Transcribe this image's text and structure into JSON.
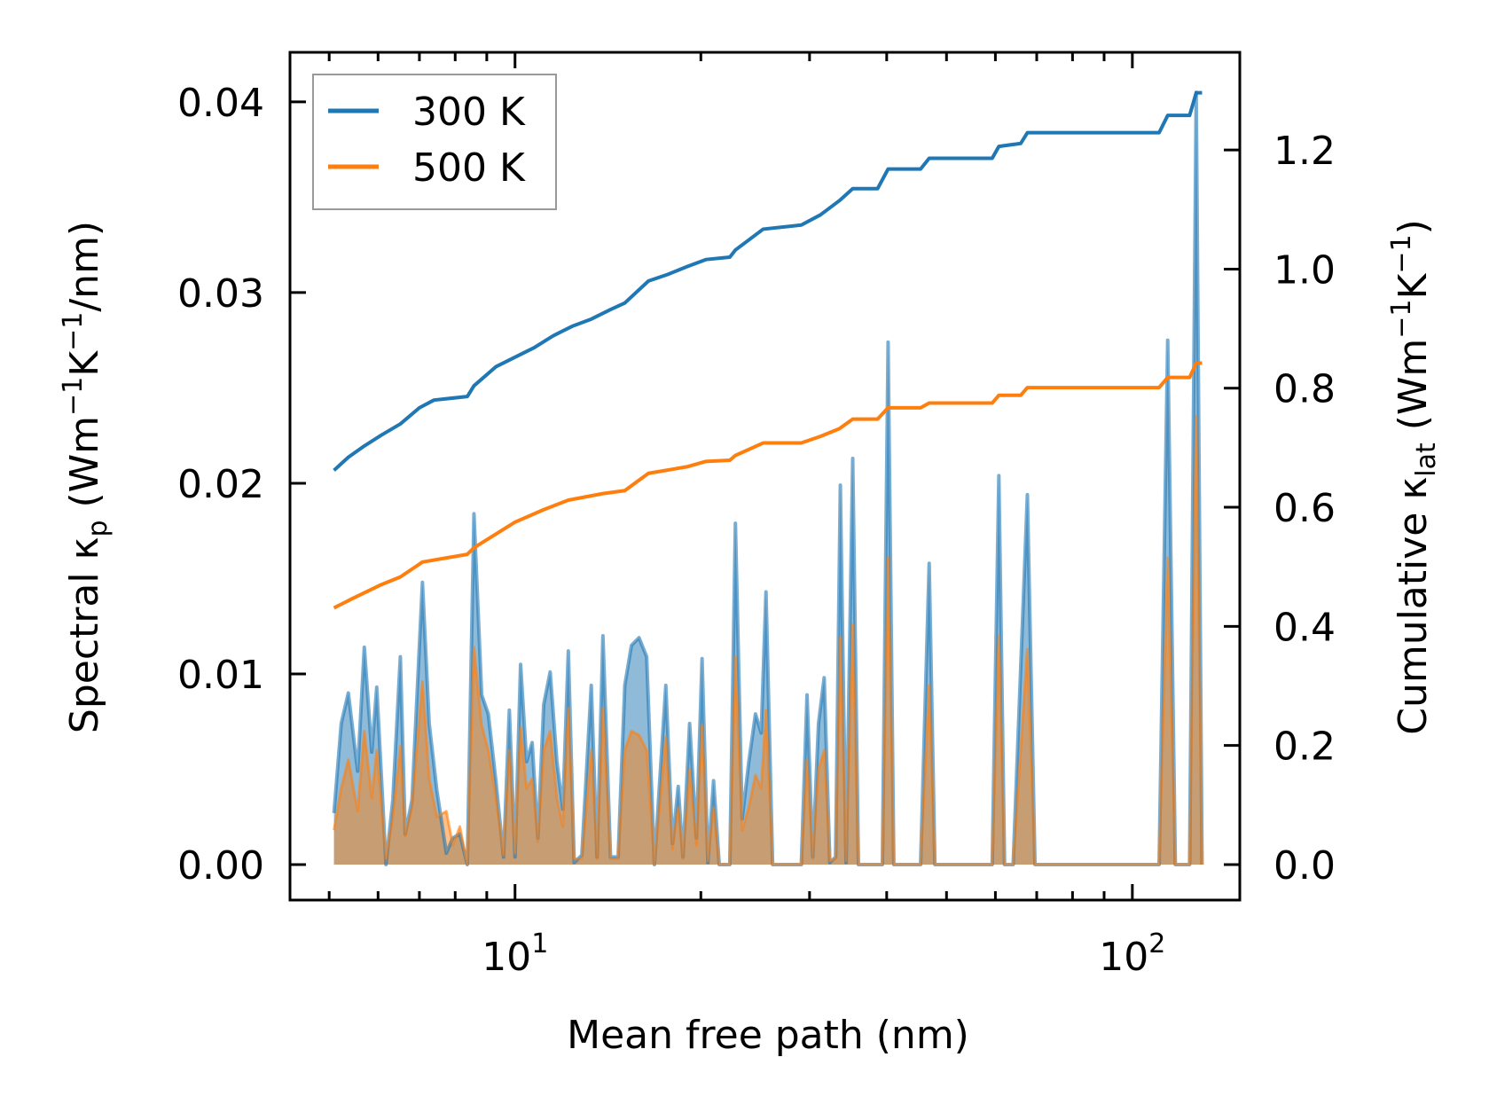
{
  "chart_data": {
    "type": "line",
    "xlabel": "Mean free path (nm)",
    "xscale": "log",
    "xlim": [
      4.32,
      149.3
    ],
    "ylim_left": [
      -0.00186,
      0.0426
    ],
    "ylim_right": [
      -0.0596,
      1.364
    ],
    "grid": false,
    "legend_position": "top-left",
    "ylabel_left": {
      "main": "Spectral κ",
      "sub": "p",
      "a": " (Wm",
      "sup1": "−1",
      "b": "K",
      "sup2": "−1",
      "c": "/nm)"
    },
    "ylabel_right": {
      "main": "Cumulative κ",
      "sub": "lat",
      "a": " (Wm",
      "sup1": "−1",
      "b": "K",
      "sup2": "−1",
      "c": ")"
    },
    "x_ticks": [
      {
        "value": 10,
        "base": "10",
        "exp": "1"
      },
      {
        "value": 100,
        "base": "10",
        "exp": "2"
      }
    ],
    "x_minor_ticks": [
      5,
      6,
      7,
      8,
      9,
      20,
      30,
      40,
      50,
      60,
      70,
      80,
      90
    ],
    "y_left_ticks": [
      {
        "value": 0,
        "label": "0.00"
      },
      {
        "value": 0.01,
        "label": "0.01"
      },
      {
        "value": 0.02,
        "label": "0.02"
      },
      {
        "value": 0.03,
        "label": "0.03"
      },
      {
        "value": 0.04,
        "label": "0.04"
      }
    ],
    "y_right_ticks": [
      {
        "value": 0,
        "label": "0.0"
      },
      {
        "value": 0.2,
        "label": "0.2"
      },
      {
        "value": 0.4,
        "label": "0.4"
      },
      {
        "value": 0.6,
        "label": "0.6"
      },
      {
        "value": 0.8,
        "label": "0.8"
      },
      {
        "value": 1.0,
        "label": "1.0"
      },
      {
        "value": 1.2,
        "label": "1.2"
      }
    ],
    "colors": {
      "300K": "#1f77b4",
      "500K": "#ff7f0e"
    },
    "legend": [
      {
        "label": "300 K",
        "color": "#1f77b4"
      },
      {
        "label": "500 K",
        "color": "#ff7f0e"
      }
    ],
    "spectral": {
      "x": [
        5.09,
        5.23,
        5.37,
        5.56,
        5.7,
        5.86,
        5.97,
        6.18,
        6.34,
        6.52,
        6.64,
        6.81,
        7.08,
        7.26,
        7.47,
        7.74,
        7.93,
        8.14,
        8.37,
        8.58,
        8.83,
        9.05,
        9.31,
        9.58,
        9.79,
        10.0,
        10.21,
        10.44,
        10.66,
        10.89,
        11.13,
        11.4,
        11.69,
        11.95,
        12.2,
        12.47,
        12.83,
        13.29,
        13.58,
        13.88,
        14.28,
        14.69,
        15.06,
        15.44,
        15.88,
        16.34,
        16.82,
        17.55,
        17.99,
        18.38,
        18.71,
        19.18,
        19.67,
        20.09,
        20.53,
        20.97,
        21.42,
        22.28,
        22.75,
        23.33,
        23.92,
        24.52,
        25.05,
        25.5,
        26.14,
        29.09,
        29.72,
        30.36,
        31.02,
        31.68,
        32.36,
        33.06,
        33.65,
        34.38,
        35.24,
        36.0,
        39.36,
        40.21,
        41.08,
        45.39,
        46.87,
        47.88,
        59.29,
        60.78,
        62.09,
        64.11,
        67.6,
        69.55,
        110.5,
        114.1,
        117.4,
        123.8,
        126.9,
        129.7
      ],
      "series": [
        {
          "name": "300 K",
          "values": [
            0.0027,
            0.0074,
            0.009,
            0.0049,
            0.0114,
            0.0059,
            0.0093,
            0,
            0.0034,
            0.0109,
            0.0016,
            0.0034,
            0.0148,
            0.0074,
            0.0039,
            0.0006,
            0.0014,
            0.0016,
            0,
            0.0184,
            0.0089,
            0.0079,
            0.0044,
            0.0004,
            0.0081,
            0.0004,
            0.0105,
            0.0054,
            0.0064,
            0.0014,
            0.0084,
            0.0101,
            0.0054,
            0.0029,
            0.0112,
            0.0001,
            0.0005,
            0.0094,
            0.0004,
            0.012,
            0.0004,
            0.0004,
            0.0094,
            0.0115,
            0.0119,
            0.0109,
            0,
            0.0094,
            0.0011,
            0.0041,
            0.0004,
            0.0074,
            0.0014,
            0.0108,
            0.0001,
            0.0044,
            0,
            0,
            0.0179,
            0.0024,
            0.0054,
            0.0079,
            0.0069,
            0.0143,
            0,
            0,
            0.0089,
            0.0004,
            0.0074,
            0.0098,
            0.0001,
            0.0004,
            0.0199,
            0.0001,
            0.0213,
            0,
            0,
            0.0274,
            0,
            0,
            0.0158,
            0,
            0,
            0.0204,
            0,
            0,
            0.0194,
            0,
            0,
            0.0275,
            0,
            0,
            0.0405,
            0
          ]
        },
        {
          "name": "500 K",
          "values": [
            0.0018,
            0.004,
            0.0055,
            0.0028,
            0.007,
            0.0035,
            0.006,
            0.0003,
            0.0025,
            0.0062,
            0.0015,
            0.003,
            0.0096,
            0.0045,
            0.0025,
            0.0028,
            0.001,
            0.002,
            0,
            0.0114,
            0.0073,
            0.006,
            0.0035,
            0.0005,
            0.006,
            0.0006,
            0.0072,
            0.004,
            0.0045,
            0.0012,
            0.006,
            0.007,
            0.0035,
            0.002,
            0.0082,
            0.0003,
            0.0003,
            0.006,
            0.0003,
            0.0082,
            0.0003,
            0.0003,
            0.006,
            0.007,
            0.0068,
            0.006,
            0,
            0.0067,
            0.0008,
            0.003,
            0.0003,
            0.005,
            0.001,
            0.0073,
            0.0002,
            0.003,
            0,
            0,
            0.0109,
            0.0018,
            0.003,
            0.0047,
            0.004,
            0.0081,
            0,
            0,
            0.0055,
            0.0003,
            0.005,
            0.006,
            0.0002,
            0.0003,
            0.0119,
            0.0002,
            0.0126,
            0,
            0,
            0.0161,
            0,
            0,
            0.0094,
            0,
            0,
            0.012,
            0,
            0,
            0.0113,
            0,
            0,
            0.0161,
            0,
            0,
            0.0235,
            0
          ]
        }
      ]
    },
    "cumulative": [
      {
        "name": "300 K",
        "x": [
          5.09,
          5.37,
          5.7,
          6.07,
          6.52,
          7.0,
          7.39,
          8.37,
          8.58,
          9.31,
          10.0,
          10.74,
          11.53,
          12.38,
          13.29,
          14.28,
          15.06,
          16.45,
          17.67,
          18.98,
          20.38,
          22.28,
          22.75,
          25.23,
          29.09,
          31.24,
          33.54,
          35.24,
          38.66,
          40.21,
          45.39,
          46.87,
          59.29,
          60.78,
          65.95,
          67.6,
          110.5,
          114.1,
          123.8,
          126.9,
          129.7
        ],
        "values": [
          0.662,
          0.684,
          0.703,
          0.721,
          0.74,
          0.767,
          0.78,
          0.786,
          0.804,
          0.836,
          0.852,
          0.868,
          0.888,
          0.904,
          0.916,
          0.932,
          0.943,
          0.98,
          0.991,
          1.004,
          1.016,
          1.02,
          1.032,
          1.067,
          1.074,
          1.091,
          1.115,
          1.135,
          1.135,
          1.168,
          1.168,
          1.186,
          1.186,
          1.206,
          1.211,
          1.229,
          1.229,
          1.258,
          1.258,
          1.296,
          1.296
        ]
      },
      {
        "name": "500 K",
        "x": [
          5.09,
          5.46,
          6.07,
          6.52,
          7.08,
          8.37,
          8.58,
          10.0,
          11.13,
          12.2,
          13.88,
          15.06,
          16.45,
          18.98,
          20.38,
          22.28,
          22.75,
          25.23,
          29.09,
          31.24,
          33.54,
          35.24,
          38.66,
          40.21,
          45.39,
          46.87,
          59.29,
          60.78,
          65.95,
          67.6,
          110.5,
          114.1,
          123.8,
          126.9,
          129.7
        ],
        "values": [
          0.431,
          0.447,
          0.47,
          0.483,
          0.508,
          0.521,
          0.532,
          0.575,
          0.596,
          0.612,
          0.623,
          0.628,
          0.657,
          0.668,
          0.677,
          0.679,
          0.687,
          0.708,
          0.708,
          0.719,
          0.732,
          0.748,
          0.748,
          0.767,
          0.767,
          0.775,
          0.775,
          0.788,
          0.788,
          0.801,
          0.801,
          0.818,
          0.818,
          0.842,
          0.842
        ]
      }
    ]
  }
}
